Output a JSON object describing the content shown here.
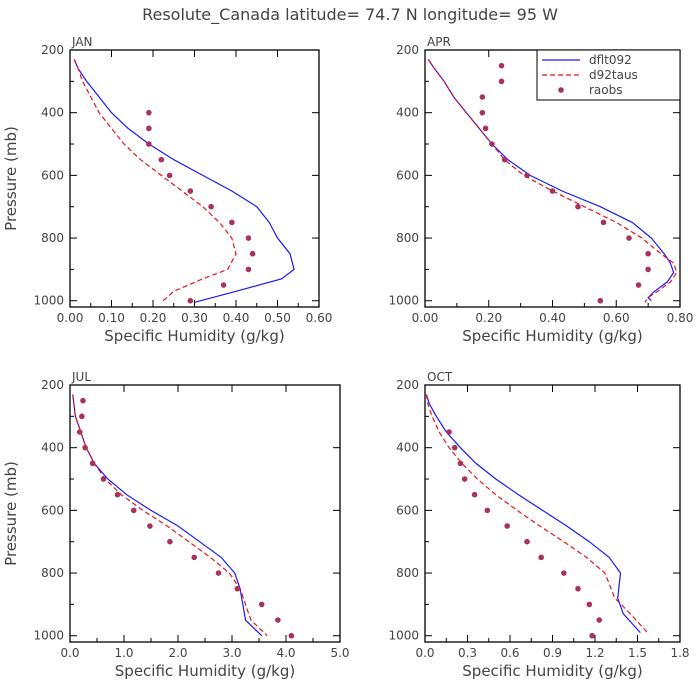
{
  "figure": {
    "title": "Resolute_Canada   latitude= 74.7 N longitude= 95 W"
  },
  "legend": {
    "entries": [
      {
        "label": "dflt092",
        "style": "solid-line",
        "color": "#1a1aff"
      },
      {
        "label": "d92taus",
        "style": "dashed-line",
        "color": "#e8141c"
      },
      {
        "label": "raobs",
        "style": "dot",
        "color": "#a8325a"
      }
    ],
    "placement": "top-right of APR panel"
  },
  "chart_data": [
    {
      "type": "line",
      "panel": "JAN",
      "xlabel": "Specific Humidity (g/kg)",
      "ylabel": "Pressure (mb)",
      "xlim": [
        0,
        0.6
      ],
      "ylim": [
        1020,
        200
      ],
      "y_inverted": true,
      "xticks": [
        "0.00",
        "0.10",
        "0.20",
        "0.30",
        "0.40",
        "0.50",
        "0.60"
      ],
      "yticks": [
        "200",
        "400",
        "600",
        "800",
        "1000"
      ],
      "series": [
        {
          "name": "dflt092",
          "style": "solid",
          "color": "#1a1aff",
          "x": [
            0.01,
            0.02,
            0.04,
            0.07,
            0.1,
            0.14,
            0.19,
            0.25,
            0.32,
            0.39,
            0.45,
            0.48,
            0.5,
            0.53,
            0.54,
            0.51,
            0.4,
            0.3
          ],
          "y": [
            230,
            260,
            300,
            350,
            400,
            450,
            500,
            550,
            600,
            650,
            700,
            750,
            800,
            850,
            900,
            930,
            970,
            1005
          ]
        },
        {
          "name": "d92taus",
          "style": "dashed",
          "color": "#e8141c",
          "x": [
            0.01,
            0.02,
            0.03,
            0.05,
            0.07,
            0.1,
            0.13,
            0.17,
            0.22,
            0.27,
            0.32,
            0.36,
            0.39,
            0.4,
            0.38,
            0.32,
            0.25,
            0.22
          ],
          "y": [
            230,
            260,
            300,
            350,
            400,
            450,
            500,
            550,
            600,
            650,
            700,
            750,
            800,
            850,
            900,
            930,
            970,
            1005
          ]
        },
        {
          "name": "raobs",
          "style": "dots",
          "color": "#a8325a",
          "x": [
            0.19,
            0.19,
            0.19,
            0.22,
            0.24,
            0.29,
            0.34,
            0.39,
            0.43,
            0.44,
            0.43,
            0.37,
            0.29
          ],
          "y": [
            400,
            450,
            500,
            550,
            600,
            650,
            700,
            750,
            800,
            850,
            900,
            950,
            1000
          ]
        }
      ]
    },
    {
      "type": "line",
      "panel": "APR",
      "xlabel": "Specific Humidity (g/kg)",
      "ylabel": "",
      "xlim": [
        0,
        0.8
      ],
      "ylim": [
        1020,
        200
      ],
      "y_inverted": true,
      "xticks": [
        "0.00",
        "0.20",
        "0.40",
        "0.60",
        "0.80"
      ],
      "yticks": [
        "200",
        "400",
        "600",
        "800",
        "1000"
      ],
      "series": [
        {
          "name": "dflt092",
          "style": "solid",
          "color": "#1a1aff",
          "x": [
            0.01,
            0.03,
            0.06,
            0.09,
            0.13,
            0.17,
            0.21,
            0.26,
            0.33,
            0.43,
            0.55,
            0.65,
            0.71,
            0.75,
            0.77,
            0.78,
            0.76,
            0.72,
            0.7,
            0.71
          ],
          "y": [
            230,
            260,
            300,
            350,
            400,
            450,
            500,
            550,
            600,
            650,
            700,
            750,
            800,
            850,
            880,
            910,
            940,
            970,
            990,
            1000
          ]
        },
        {
          "name": "d92taus",
          "style": "dashed",
          "color": "#e8141c",
          "x": [
            0.01,
            0.03,
            0.06,
            0.09,
            0.13,
            0.17,
            0.21,
            0.25,
            0.31,
            0.4,
            0.5,
            0.6,
            0.68,
            0.74,
            0.78,
            0.79,
            0.77,
            0.73,
            0.7,
            0.69
          ],
          "y": [
            230,
            260,
            300,
            350,
            400,
            450,
            500,
            550,
            600,
            650,
            700,
            750,
            800,
            850,
            880,
            910,
            940,
            970,
            990,
            1005
          ]
        },
        {
          "name": "raobs",
          "style": "dots",
          "color": "#a8325a",
          "x": [
            0.24,
            0.24,
            0.18,
            0.18,
            0.19,
            0.21,
            0.25,
            0.32,
            0.4,
            0.48,
            0.56,
            0.64,
            0.7,
            0.7,
            0.67,
            0.55
          ],
          "y": [
            250,
            300,
            350,
            400,
            450,
            500,
            550,
            600,
            650,
            700,
            750,
            800,
            850,
            900,
            950,
            1000
          ]
        }
      ]
    },
    {
      "type": "line",
      "panel": "JUL",
      "xlabel": "Specific Humidity (g/kg)",
      "ylabel": "Pressure (mb)",
      "xlim": [
        0,
        5.0
      ],
      "ylim": [
        1020,
        200
      ],
      "y_inverted": true,
      "xticks": [
        "0.0",
        "1.0",
        "2.0",
        "3.0",
        "4.0",
        "5.0"
      ],
      "yticks": [
        "200",
        "400",
        "600",
        "800",
        "1000"
      ],
      "series": [
        {
          "name": "dflt092",
          "style": "solid",
          "color": "#1a1aff",
          "x": [
            0.05,
            0.1,
            0.2,
            0.3,
            0.45,
            0.7,
            1.05,
            1.5,
            2.0,
            2.4,
            2.8,
            3.05,
            3.15,
            3.25,
            3.55
          ],
          "y": [
            230,
            300,
            350,
            400,
            450,
            500,
            550,
            600,
            650,
            700,
            750,
            800,
            850,
            950,
            1000
          ]
        },
        {
          "name": "d92taus",
          "style": "dashed",
          "color": "#e8141c",
          "x": [
            0.05,
            0.1,
            0.2,
            0.3,
            0.45,
            0.65,
            0.95,
            1.35,
            1.8,
            2.2,
            2.6,
            2.95,
            3.15,
            3.35,
            3.65
          ],
          "y": [
            230,
            300,
            350,
            400,
            450,
            500,
            550,
            600,
            650,
            700,
            750,
            800,
            850,
            950,
            1000
          ]
        },
        {
          "name": "raobs",
          "style": "dots",
          "color": "#a8325a",
          "x": [
            0.24,
            0.22,
            0.18,
            0.28,
            0.42,
            0.62,
            0.88,
            1.18,
            1.48,
            1.85,
            2.3,
            2.75,
            3.1,
            3.55,
            3.85,
            4.1
          ],
          "y": [
            250,
            300,
            350,
            400,
            450,
            500,
            550,
            600,
            650,
            700,
            750,
            800,
            850,
            900,
            950,
            1000
          ]
        }
      ]
    },
    {
      "type": "line",
      "panel": "OCT",
      "xlabel": "Specific Humidity (g/kg)",
      "ylabel": "",
      "xlim": [
        0,
        1.8
      ],
      "ylim": [
        1020,
        200
      ],
      "y_inverted": true,
      "xticks": [
        "0.0",
        "0.3",
        "0.6",
        "0.9",
        "1.2",
        "1.5",
        "1.8"
      ],
      "yticks": [
        "200",
        "400",
        "600",
        "800",
        "1000"
      ],
      "series": [
        {
          "name": "dflt092",
          "style": "solid",
          "color": "#1a1aff",
          "x": [
            0.01,
            0.03,
            0.08,
            0.15,
            0.25,
            0.36,
            0.5,
            0.66,
            0.83,
            1.0,
            1.16,
            1.3,
            1.38,
            1.36,
            1.4,
            1.52
          ],
          "y": [
            230,
            260,
            300,
            350,
            400,
            450,
            500,
            550,
            600,
            650,
            700,
            750,
            800,
            880,
            930,
            990
          ]
        },
        {
          "name": "d92taus",
          "style": "dashed",
          "color": "#e8141c",
          "x": [
            0.01,
            0.02,
            0.05,
            0.1,
            0.17,
            0.26,
            0.37,
            0.5,
            0.65,
            0.81,
            0.98,
            1.14,
            1.27,
            1.34,
            1.45,
            1.57
          ],
          "y": [
            230,
            260,
            300,
            350,
            400,
            450,
            500,
            550,
            600,
            650,
            700,
            750,
            800,
            880,
            930,
            990
          ]
        },
        {
          "name": "raobs",
          "style": "dots",
          "color": "#a8325a",
          "x": [
            0.17,
            0.21,
            0.25,
            0.28,
            0.35,
            0.44,
            0.58,
            0.72,
            0.82,
            0.98,
            1.08,
            1.16,
            1.23,
            1.18
          ],
          "y": [
            350,
            400,
            450,
            500,
            550,
            600,
            650,
            700,
            750,
            800,
            850,
            900,
            950,
            1000
          ]
        }
      ]
    }
  ]
}
